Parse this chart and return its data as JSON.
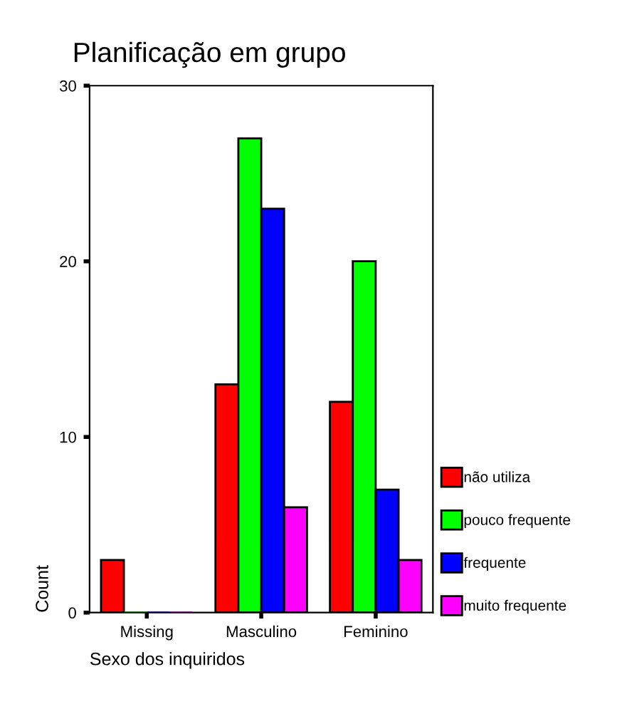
{
  "chart_data": {
    "type": "bar",
    "title": "Planificação em grupo",
    "xlabel": "Sexo dos inquiridos",
    "ylabel": "Count",
    "categories": [
      "Missing",
      "Masculino",
      "Feminino"
    ],
    "series": [
      {
        "name": "não utiliza",
        "color": "#ff0000",
        "values": [
          3,
          13,
          12
        ]
      },
      {
        "name": "pouco frequente",
        "color": "#00ff00",
        "values": [
          0,
          27,
          20
        ]
      },
      {
        "name": "frequente",
        "color": "#0000ff",
        "values": [
          0,
          23,
          7
        ]
      },
      {
        "name": "muito frequente",
        "color": "#ff00ff",
        "values": [
          0,
          6,
          3
        ]
      }
    ],
    "ylim": [
      0,
      30
    ],
    "yticks": [
      0,
      10,
      20,
      30
    ],
    "grid": false,
    "legend": "right"
  }
}
